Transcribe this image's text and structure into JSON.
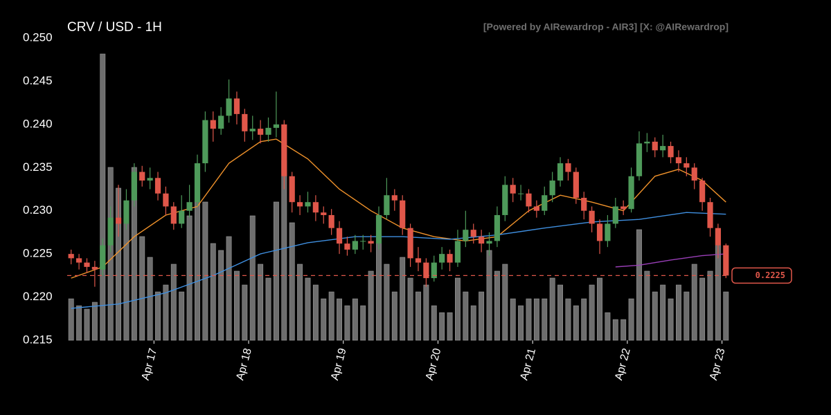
{
  "chart_data": {
    "type": "candlestick",
    "title": "CRV / USD - 1H",
    "watermark": "[Powered by AIRewardrop - AIR3] [X: @AIRewardrop]",
    "xlim": [
      -0.5,
      83.5
    ],
    "xticks": [
      {
        "value": 10.5,
        "label": "Apr 17"
      },
      {
        "value": 22.5,
        "label": "Apr 18"
      },
      {
        "value": 34.5,
        "label": "Apr 19"
      },
      {
        "value": 46.5,
        "label": "Apr 20"
      },
      {
        "value": 58.5,
        "label": "Apr 21"
      },
      {
        "value": 70.5,
        "label": "Apr 22"
      },
      {
        "value": 82.5,
        "label": "Apr 23"
      }
    ],
    "ylim": [
      0.215,
      0.25
    ],
    "yticks": [
      0.215,
      {
        "value": 0.22,
        "label": "0.220"
      },
      0.225,
      {
        "value": 0.23,
        "label": "0.230"
      },
      0.235,
      {
        "value": 0.24,
        "label": "0.240"
      },
      0.245,
      {
        "value": 0.25,
        "label": "0.250"
      }
    ],
    "up_color": "#4e9a5a",
    "down_color": "#e0574a",
    "volume_color": "#6e6e6e",
    "open": [
      0.225,
      0.2245,
      0.224,
      0.2235,
      0.2232,
      0.226,
      0.2292,
      0.2285,
      0.2312,
      0.2345,
      0.2335,
      0.2338,
      0.232,
      0.2305,
      0.2285,
      0.23,
      0.231,
      0.2355,
      0.2405,
      0.2395,
      0.241,
      0.243,
      0.2412,
      0.2392,
      0.2395,
      0.2388,
      0.2396,
      0.24,
      0.234,
      0.231,
      0.2305,
      0.231,
      0.2298,
      0.2295,
      0.228,
      0.2262,
      0.2255,
      0.2265,
      0.2265,
      0.2262,
      0.2295,
      0.2318,
      0.2312,
      0.228,
      0.2245,
      0.224,
      0.2222,
      0.224,
      0.225,
      0.224,
      0.2265,
      0.2278,
      0.227,
      0.2262,
      0.2265,
      0.2295,
      0.233,
      0.232,
      0.232,
      0.2305,
      0.23,
      0.2318,
      0.2335,
      0.2355,
      0.2345,
      0.2315,
      0.23,
      0.2285,
      0.2265,
      0.2285,
      0.2305,
      0.2302,
      0.234,
      0.2378,
      0.238,
      0.237,
      0.2375,
      0.2362,
      0.2355,
      0.235,
      0.2335,
      0.231,
      0.228,
      0.226
    ],
    "high": [
      0.2255,
      0.225,
      0.2245,
      0.2242,
      0.2268,
      0.2305,
      0.233,
      0.2325,
      0.2355,
      0.2352,
      0.235,
      0.2345,
      0.2328,
      0.231,
      0.2318,
      0.233,
      0.2365,
      0.2415,
      0.2415,
      0.242,
      0.2452,
      0.2438,
      0.2418,
      0.241,
      0.2405,
      0.2408,
      0.2438,
      0.2405,
      0.2345,
      0.2318,
      0.2322,
      0.2318,
      0.2305,
      0.2302,
      0.2288,
      0.227,
      0.2272,
      0.2272,
      0.2272,
      0.2305,
      0.2338,
      0.2325,
      0.2318,
      0.2285,
      0.2258,
      0.2245,
      0.2248,
      0.2258,
      0.2255,
      0.2278,
      0.23,
      0.2285,
      0.2278,
      0.2275,
      0.2305,
      0.234,
      0.2338,
      0.233,
      0.2325,
      0.2312,
      0.2328,
      0.2345,
      0.2362,
      0.236,
      0.235,
      0.2322,
      0.2305,
      0.229,
      0.2295,
      0.2315,
      0.2312,
      0.235,
      0.2392,
      0.239,
      0.2385,
      0.2388,
      0.238,
      0.237,
      0.2362,
      0.2355,
      0.2338,
      0.2315,
      0.2285,
      0.2262
    ],
    "low": [
      0.2238,
      0.2232,
      0.2228,
      0.2212,
      0.2225,
      0.2252,
      0.227,
      0.2278,
      0.2305,
      0.2328,
      0.2325,
      0.2312,
      0.2295,
      0.2278,
      0.228,
      0.2292,
      0.2305,
      0.2345,
      0.238,
      0.2388,
      0.2402,
      0.24,
      0.238,
      0.2382,
      0.2378,
      0.238,
      0.2385,
      0.2325,
      0.2298,
      0.2295,
      0.2298,
      0.2288,
      0.2285,
      0.2272,
      0.225,
      0.2248,
      0.225,
      0.2255,
      0.2252,
      0.2255,
      0.229,
      0.23,
      0.2272,
      0.2235,
      0.223,
      0.2212,
      0.2218,
      0.2232,
      0.223,
      0.2235,
      0.2258,
      0.2262,
      0.2252,
      0.2248,
      0.2258,
      0.2288,
      0.231,
      0.2312,
      0.2298,
      0.2292,
      0.2295,
      0.231,
      0.2328,
      0.2335,
      0.2308,
      0.229,
      0.2275,
      0.225,
      0.2258,
      0.228,
      0.2295,
      0.2298,
      0.2335,
      0.2368,
      0.2362,
      0.2362,
      0.2355,
      0.2345,
      0.234,
      0.2325,
      0.23,
      0.227,
      0.2245,
      0.2222
    ],
    "close": [
      0.2245,
      0.224,
      0.2235,
      0.2232,
      0.226,
      0.2292,
      0.2285,
      0.2312,
      0.2345,
      0.2335,
      0.2338,
      0.232,
      0.2305,
      0.2285,
      0.23,
      0.231,
      0.2355,
      0.2405,
      0.2395,
      0.241,
      0.243,
      0.2412,
      0.2392,
      0.2395,
      0.2388,
      0.2396,
      0.24,
      0.234,
      0.231,
      0.2305,
      0.231,
      0.2298,
      0.2295,
      0.228,
      0.2262,
      0.2255,
      0.2265,
      0.2265,
      0.2262,
      0.2295,
      0.2318,
      0.2312,
      0.228,
      0.2245,
      0.224,
      0.2222,
      0.224,
      0.225,
      0.224,
      0.2265,
      0.2278,
      0.227,
      0.2262,
      0.2265,
      0.2295,
      0.233,
      0.232,
      0.232,
      0.2305,
      0.23,
      0.2318,
      0.2335,
      0.2355,
      0.2345,
      0.2315,
      0.23,
      0.2285,
      0.2265,
      0.2285,
      0.2305,
      0.2302,
      0.234,
      0.2378,
      0.238,
      0.237,
      0.2375,
      0.2362,
      0.2355,
      0.235,
      0.2335,
      0.231,
      0.228,
      0.226,
      0.2225
    ],
    "volume": [
      60,
      50,
      45,
      55,
      414,
      250,
      220,
      190,
      250,
      150,
      120,
      70,
      80,
      110,
      70,
      180,
      230,
      200,
      140,
      130,
      150,
      100,
      80,
      180,
      110,
      90,
      200,
      260,
      170,
      110,
      90,
      80,
      60,
      70,
      60,
      50,
      60,
      50,
      100,
      160,
      110,
      70,
      120,
      90,
      70,
      80,
      50,
      40,
      40,
      90,
      70,
      50,
      70,
      130,
      100,
      110,
      60,
      50,
      60,
      60,
      60,
      90,
      80,
      60,
      50,
      60,
      80,
      90,
      40,
      30,
      30,
      60,
      160,
      100,
      70,
      80,
      60,
      80,
      70,
      110,
      90,
      100,
      160,
      70
    ],
    "series": [
      {
        "color": "#f0922b",
        "x": [
          0,
          4,
          8,
          12,
          16,
          20,
          24,
          26,
          30,
          34,
          38,
          42,
          46,
          50,
          54,
          58,
          62,
          66,
          70,
          74,
          77,
          80,
          83
        ],
        "values": [
          0.2222,
          0.2235,
          0.227,
          0.2295,
          0.2305,
          0.2355,
          0.238,
          0.2383,
          0.236,
          0.2325,
          0.23,
          0.228,
          0.227,
          0.2265,
          0.227,
          0.23,
          0.2318,
          0.231,
          0.23,
          0.234,
          0.2348,
          0.2335,
          0.231
        ]
      },
      {
        "color": "#3f8fe0",
        "x": [
          0,
          6,
          12,
          18,
          24,
          30,
          36,
          42,
          48,
          54,
          60,
          66,
          72,
          78,
          83
        ],
        "values": [
          0.2187,
          0.2192,
          0.2205,
          0.2225,
          0.225,
          0.2263,
          0.227,
          0.227,
          0.2267,
          0.2272,
          0.228,
          0.2287,
          0.229,
          0.2298,
          0.2296
        ]
      },
      {
        "color": "#9a3fb8",
        "x": [
          69,
          72,
          76,
          80,
          83
        ],
        "values": [
          0.2235,
          0.2237,
          0.2243,
          0.2248,
          0.225
        ]
      }
    ],
    "last_price": 0.2225,
    "last_price_color": "#e0574a"
  }
}
